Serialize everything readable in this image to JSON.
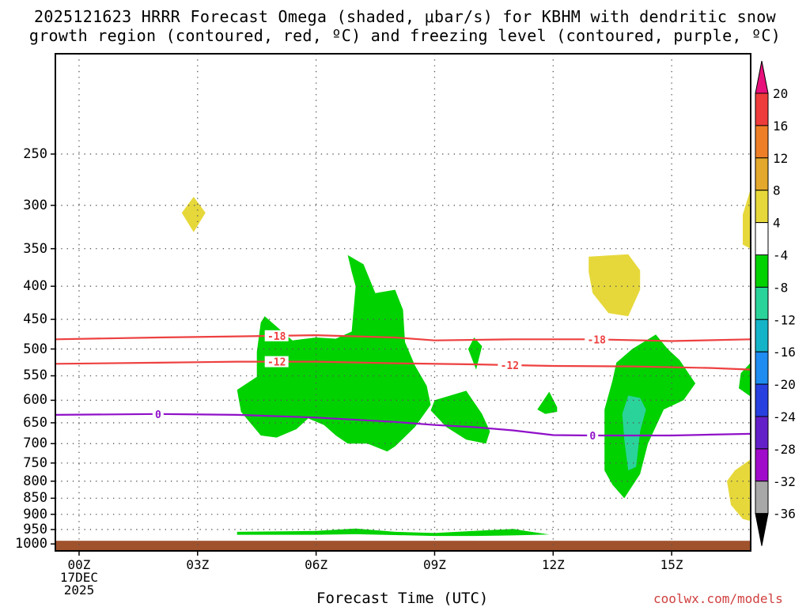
{
  "title_line1": "2025121623 HRRR Forecast Omega (shaded, μbar/s) for KBHM with dendritic snow",
  "title_line2": "growth region (contoured, red, ºC) and freezing level (contoured, purple, ºC)",
  "x_axis_title": "Forecast Time (UTC)",
  "credit": "coolwx.com/models",
  "chart_data": {
    "type": "heatmap",
    "xlabel": "Forecast Time (UTC)",
    "x_ticks": [
      {
        "hour": 0,
        "label": "00Z"
      },
      {
        "hour": 3,
        "label": "03Z"
      },
      {
        "hour": 6,
        "label": "06Z"
      },
      {
        "hour": 9,
        "label": "09Z"
      },
      {
        "hour": 12,
        "label": "12Z"
      },
      {
        "hour": 15,
        "label": "15Z"
      }
    ],
    "x_date_label": [
      "17DEC",
      "2025"
    ],
    "x_range": [
      -0.6,
      17.0
    ],
    "y_pressure_ticks": [
      250,
      300,
      350,
      400,
      450,
      500,
      550,
      600,
      650,
      700,
      750,
      800,
      850,
      900,
      950,
      1000
    ],
    "y_range_hPa": [
      175,
      1025
    ],
    "surface_shading_from_hPa": 1000,
    "grid": true,
    "colorbar": {
      "labels": [
        "20",
        "16",
        "12",
        "8",
        "4",
        "-4",
        "-8",
        "-12",
        "-16",
        "-20",
        "-24",
        "-28",
        "-32",
        "-36"
      ],
      "bins": [
        {
          "from": 20,
          "to": 24,
          "color": "#e8107a"
        },
        {
          "from": 16,
          "to": 20,
          "color": "#ee3b3b"
        },
        {
          "from": 12,
          "to": 16,
          "color": "#ee7f27"
        },
        {
          "from": 8,
          "to": 12,
          "color": "#e3a82c"
        },
        {
          "from": 4,
          "to": 8,
          "color": "#e6d83a"
        },
        {
          "from": -4,
          "to": 4,
          "color": "#ffffff"
        },
        {
          "from": -8,
          "to": -4,
          "color": "#00d200"
        },
        {
          "from": -12,
          "to": -8,
          "color": "#2ad39a"
        },
        {
          "from": -16,
          "to": -12,
          "color": "#14b4c8"
        },
        {
          "from": -20,
          "to": -16,
          "color": "#1e8cf0"
        },
        {
          "from": -24,
          "to": -20,
          "color": "#2840e0"
        },
        {
          "from": -28,
          "to": -24,
          "color": "#6420c8"
        },
        {
          "from": -32,
          "to": -28,
          "color": "#a00aca"
        },
        {
          "from": -36,
          "to": -32,
          "color": "#a8a8a8"
        },
        {
          "from": -40,
          "to": -36,
          "color": "#000000"
        }
      ]
    },
    "omega_regions": [
      {
        "value_range": "4 to 8",
        "color": "#e6d83a",
        "points": [
          [
            2.9,
            291
          ],
          [
            3.2,
            308
          ],
          [
            2.9,
            330
          ],
          [
            2.6,
            308
          ]
        ]
      },
      {
        "value_range": "4 to 8",
        "color": "#e6d83a",
        "points": [
          [
            12.9,
            360
          ],
          [
            13.9,
            357
          ],
          [
            14.2,
            378
          ],
          [
            14.2,
            405
          ],
          [
            13.9,
            445
          ],
          [
            13.4,
            440
          ],
          [
            13.0,
            410
          ],
          [
            12.9,
            380
          ]
        ]
      },
      {
        "value_range": "4 to 8",
        "color": "#e6d83a",
        "points": [
          [
            17.0,
            283
          ],
          [
            16.8,
            310
          ],
          [
            16.8,
            345
          ],
          [
            17.0,
            350
          ]
        ]
      },
      {
        "value_range": "4 to 8",
        "color": "#e6d83a",
        "points": [
          [
            17.0,
            740
          ],
          [
            16.6,
            770
          ],
          [
            16.4,
            800
          ],
          [
            16.5,
            870
          ],
          [
            16.8,
            915
          ],
          [
            17.0,
            922
          ]
        ]
      },
      {
        "value_range": "-8 to -4",
        "color": "#00d200",
        "points": [
          [
            4.6,
            455
          ],
          [
            4.7,
            445
          ],
          [
            5.4,
            485
          ],
          [
            6.0,
            480
          ],
          [
            6.5,
            482
          ],
          [
            6.9,
            470
          ],
          [
            7.0,
            400
          ],
          [
            6.9,
            380
          ],
          [
            6.8,
            358
          ],
          [
            7.2,
            370
          ],
          [
            7.5,
            410
          ],
          [
            8.0,
            405
          ],
          [
            8.2,
            435
          ],
          [
            8.25,
            488
          ],
          [
            8.5,
            530
          ],
          [
            8.8,
            570
          ],
          [
            8.9,
            610
          ],
          [
            8.5,
            660
          ],
          [
            8.0,
            707
          ],
          [
            7.8,
            720
          ],
          [
            7.3,
            700
          ],
          [
            6.8,
            700
          ],
          [
            6.5,
            680
          ],
          [
            6.2,
            655
          ],
          [
            5.8,
            640
          ],
          [
            5.5,
            665
          ],
          [
            5.0,
            685
          ],
          [
            4.6,
            680
          ],
          [
            4.1,
            625
          ],
          [
            4.0,
            578
          ],
          [
            4.5,
            552
          ],
          [
            4.5,
            505
          ]
        ]
      },
      {
        "value_range": "-8 to -4",
        "color": "#00d200",
        "points": [
          [
            10.0,
            480
          ],
          [
            10.2,
            495
          ],
          [
            10.05,
            538
          ],
          [
            9.85,
            500
          ]
        ]
      },
      {
        "value_range": "-8 to -4",
        "color": "#00d200",
        "points": [
          [
            9.0,
            600
          ],
          [
            9.8,
            580
          ],
          [
            10.2,
            630
          ],
          [
            10.4,
            670
          ],
          [
            10.3,
            700
          ],
          [
            9.8,
            690
          ],
          [
            9.3,
            660
          ],
          [
            8.9,
            622
          ]
        ]
      },
      {
        "value_range": "-8 to -4",
        "color": "#00d200",
        "points": [
          [
            11.9,
            582
          ],
          [
            12.1,
            615
          ],
          [
            12.1,
            625
          ],
          [
            11.8,
            630
          ],
          [
            11.6,
            620
          ]
        ]
      },
      {
        "value_range": "-8 to -4",
        "color": "#00d200",
        "points": [
          [
            13.6,
            525
          ],
          [
            14.0,
            500
          ],
          [
            14.6,
            475
          ],
          [
            14.9,
            500
          ],
          [
            15.2,
            520
          ],
          [
            15.6,
            565
          ],
          [
            15.3,
            600
          ],
          [
            14.8,
            620
          ],
          [
            14.4,
            700
          ],
          [
            14.2,
            780
          ],
          [
            13.8,
            850
          ],
          [
            13.5,
            810
          ],
          [
            13.3,
            770
          ],
          [
            13.3,
            700
          ],
          [
            13.3,
            620
          ],
          [
            13.5,
            560
          ]
        ]
      },
      {
        "value_range": "-12 to -8",
        "color": "#2ad39a",
        "points": [
          [
            13.9,
            590
          ],
          [
            14.2,
            595
          ],
          [
            14.35,
            620
          ],
          [
            14.2,
            670
          ],
          [
            14.1,
            760
          ],
          [
            13.9,
            770
          ],
          [
            13.8,
            690
          ],
          [
            13.75,
            630
          ]
        ]
      },
      {
        "value_range": "-8 to -4",
        "color": "#00d200",
        "points": [
          [
            17.0,
            525
          ],
          [
            16.75,
            545
          ],
          [
            16.7,
            575
          ],
          [
            17.0,
            592
          ]
        ]
      },
      {
        "value_range": "-8 to -4",
        "color": "#00d200",
        "points": [
          [
            4.0,
            958
          ],
          [
            6.0,
            955
          ],
          [
            7.0,
            947
          ],
          [
            8.0,
            958
          ],
          [
            9.0,
            962
          ],
          [
            10.0,
            955
          ],
          [
            11.0,
            948
          ],
          [
            11.3,
            955
          ],
          [
            11.9,
            967
          ],
          [
            11.0,
            970
          ],
          [
            10.0,
            972
          ],
          [
            9.0,
            972
          ],
          [
            8.0,
            969
          ],
          [
            7.0,
            966
          ],
          [
            6.0,
            968
          ],
          [
            4.0,
            968
          ]
        ]
      }
    ],
    "temperature_contours": [
      {
        "label": "-18",
        "color": "#ee4040",
        "label_at_hour": [
          5.0,
          13.1
        ],
        "points": [
          [
            -0.6,
            483
          ],
          [
            2.0,
            480
          ],
          [
            4.0,
            478
          ],
          [
            6.0,
            476
          ],
          [
            8.0,
            480
          ],
          [
            9.0,
            485
          ],
          [
            11.0,
            483
          ],
          [
            13.0,
            483
          ],
          [
            15.0,
            486
          ],
          [
            17.0,
            483
          ]
        ]
      },
      {
        "label": "-12",
        "color": "#ee4040",
        "label_at_hour": [
          5.0,
          10.9
        ],
        "points": [
          [
            -0.6,
            527
          ],
          [
            2.0,
            525
          ],
          [
            4.0,
            523
          ],
          [
            6.0,
            523
          ],
          [
            8.0,
            526
          ],
          [
            10.0,
            528
          ],
          [
            12.0,
            531
          ],
          [
            14.0,
            532
          ],
          [
            16.0,
            535
          ],
          [
            17.0,
            538
          ]
        ]
      },
      {
        "label": "0",
        "color": "#9010c8",
        "label_at_hour": [
          2.0,
          13.0
        ],
        "points": [
          [
            -0.6,
            632
          ],
          [
            2.0,
            630
          ],
          [
            4.0,
            632
          ],
          [
            6.0,
            638
          ],
          [
            8.0,
            648
          ],
          [
            9.0,
            655
          ],
          [
            10.0,
            660
          ],
          [
            11.0,
            668
          ],
          [
            12.0,
            679
          ],
          [
            13.0,
            680
          ],
          [
            14.0,
            680
          ],
          [
            15.0,
            680
          ],
          [
            16.0,
            678
          ],
          [
            17.0,
            676
          ]
        ]
      }
    ]
  }
}
